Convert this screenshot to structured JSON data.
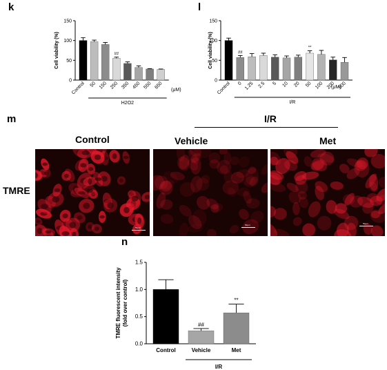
{
  "panels": {
    "k": "k",
    "l": "l",
    "m": "m",
    "n": "n"
  },
  "micrographs": {
    "group_header": "I/R",
    "labels": [
      "Control",
      "Vehicle",
      "Met"
    ],
    "row_label": "TMRE",
    "scale_bar_text": "50μm",
    "intensity": [
      1.0,
      0.3,
      0.65
    ],
    "colors": {
      "cell": "#e8192c",
      "background": "#1a0303"
    }
  },
  "chart_data": [
    {
      "id": "k",
      "type": "bar",
      "ylabel": "Cell viability (%)",
      "xlabel": "",
      "ylim": [
        0,
        150
      ],
      "yticks": [
        0,
        50,
        100,
        150
      ],
      "grid": false,
      "categories": [
        "Control",
        "50",
        "150",
        "250",
        "350",
        "450",
        "550",
        "650"
      ],
      "values": [
        100,
        97,
        90,
        55,
        42,
        32,
        28,
        27
      ],
      "errors": [
        7,
        4,
        5,
        3,
        4,
        4,
        1,
        1
      ],
      "colors": [
        "#000000",
        "#bdbdbd",
        "#8c8c8c",
        "#d9d9d9",
        "#595959",
        "#a6a6a6",
        "#7f7f7f",
        "#d0d0d0"
      ],
      "annotations": [
        {
          "category": "250",
          "text": "##"
        }
      ],
      "unit_label": "(μM)",
      "group_label": "H2O2",
      "group_range": [
        "50",
        "650"
      ]
    },
    {
      "id": "l",
      "type": "bar",
      "ylabel": "Cell viability (%)",
      "xlabel": "",
      "ylim": [
        0,
        150
      ],
      "yticks": [
        0,
        50,
        100,
        150
      ],
      "grid": false,
      "categories": [
        "Control",
        "0",
        "1.25",
        "2.5",
        "5",
        "10",
        "20",
        "50",
        "100",
        "200",
        "500"
      ],
      "values": [
        100,
        57,
        59,
        62,
        58,
        56,
        58,
        68,
        65,
        51,
        45
      ],
      "errors": [
        6,
        5,
        8,
        6,
        6,
        5,
        5,
        6,
        10,
        7,
        12
      ],
      "colors": [
        "#000000",
        "#8c8c8c",
        "#bdbdbd",
        "#d9d9d9",
        "#595959",
        "#a6a6a6",
        "#7f7f7f",
        "#e6e6e6",
        "#b3b3b3",
        "#262626",
        "#999999"
      ],
      "annotations": [
        {
          "category": "0",
          "text": "##"
        },
        {
          "category": "50",
          "text": "**"
        }
      ],
      "unit_label": "(μM)",
      "group_label": "I/R",
      "group_range": [
        "0",
        "500"
      ]
    },
    {
      "id": "n",
      "type": "bar",
      "ylabel": "TMRE fluorescent intensity",
      "ylabel2": "(fold over control)",
      "xlabel": "",
      "ylim": [
        0,
        1.5
      ],
      "yticks": [
        "0.0",
        "0.5",
        "1.0",
        "1.5"
      ],
      "grid": false,
      "categories": [
        "Control",
        "Vehicle",
        "Met"
      ],
      "values": [
        1.0,
        0.24,
        0.57
      ],
      "errors": [
        0.18,
        0.04,
        0.16
      ],
      "colors": [
        "#000000",
        "#a6a6a6",
        "#8c8c8c"
      ],
      "annotations": [
        {
          "category": "Vehicle",
          "text": "##"
        },
        {
          "category": "Met",
          "text": "**"
        }
      ],
      "group_label": "I/R",
      "group_range": [
        "Vehicle",
        "Met"
      ]
    }
  ]
}
